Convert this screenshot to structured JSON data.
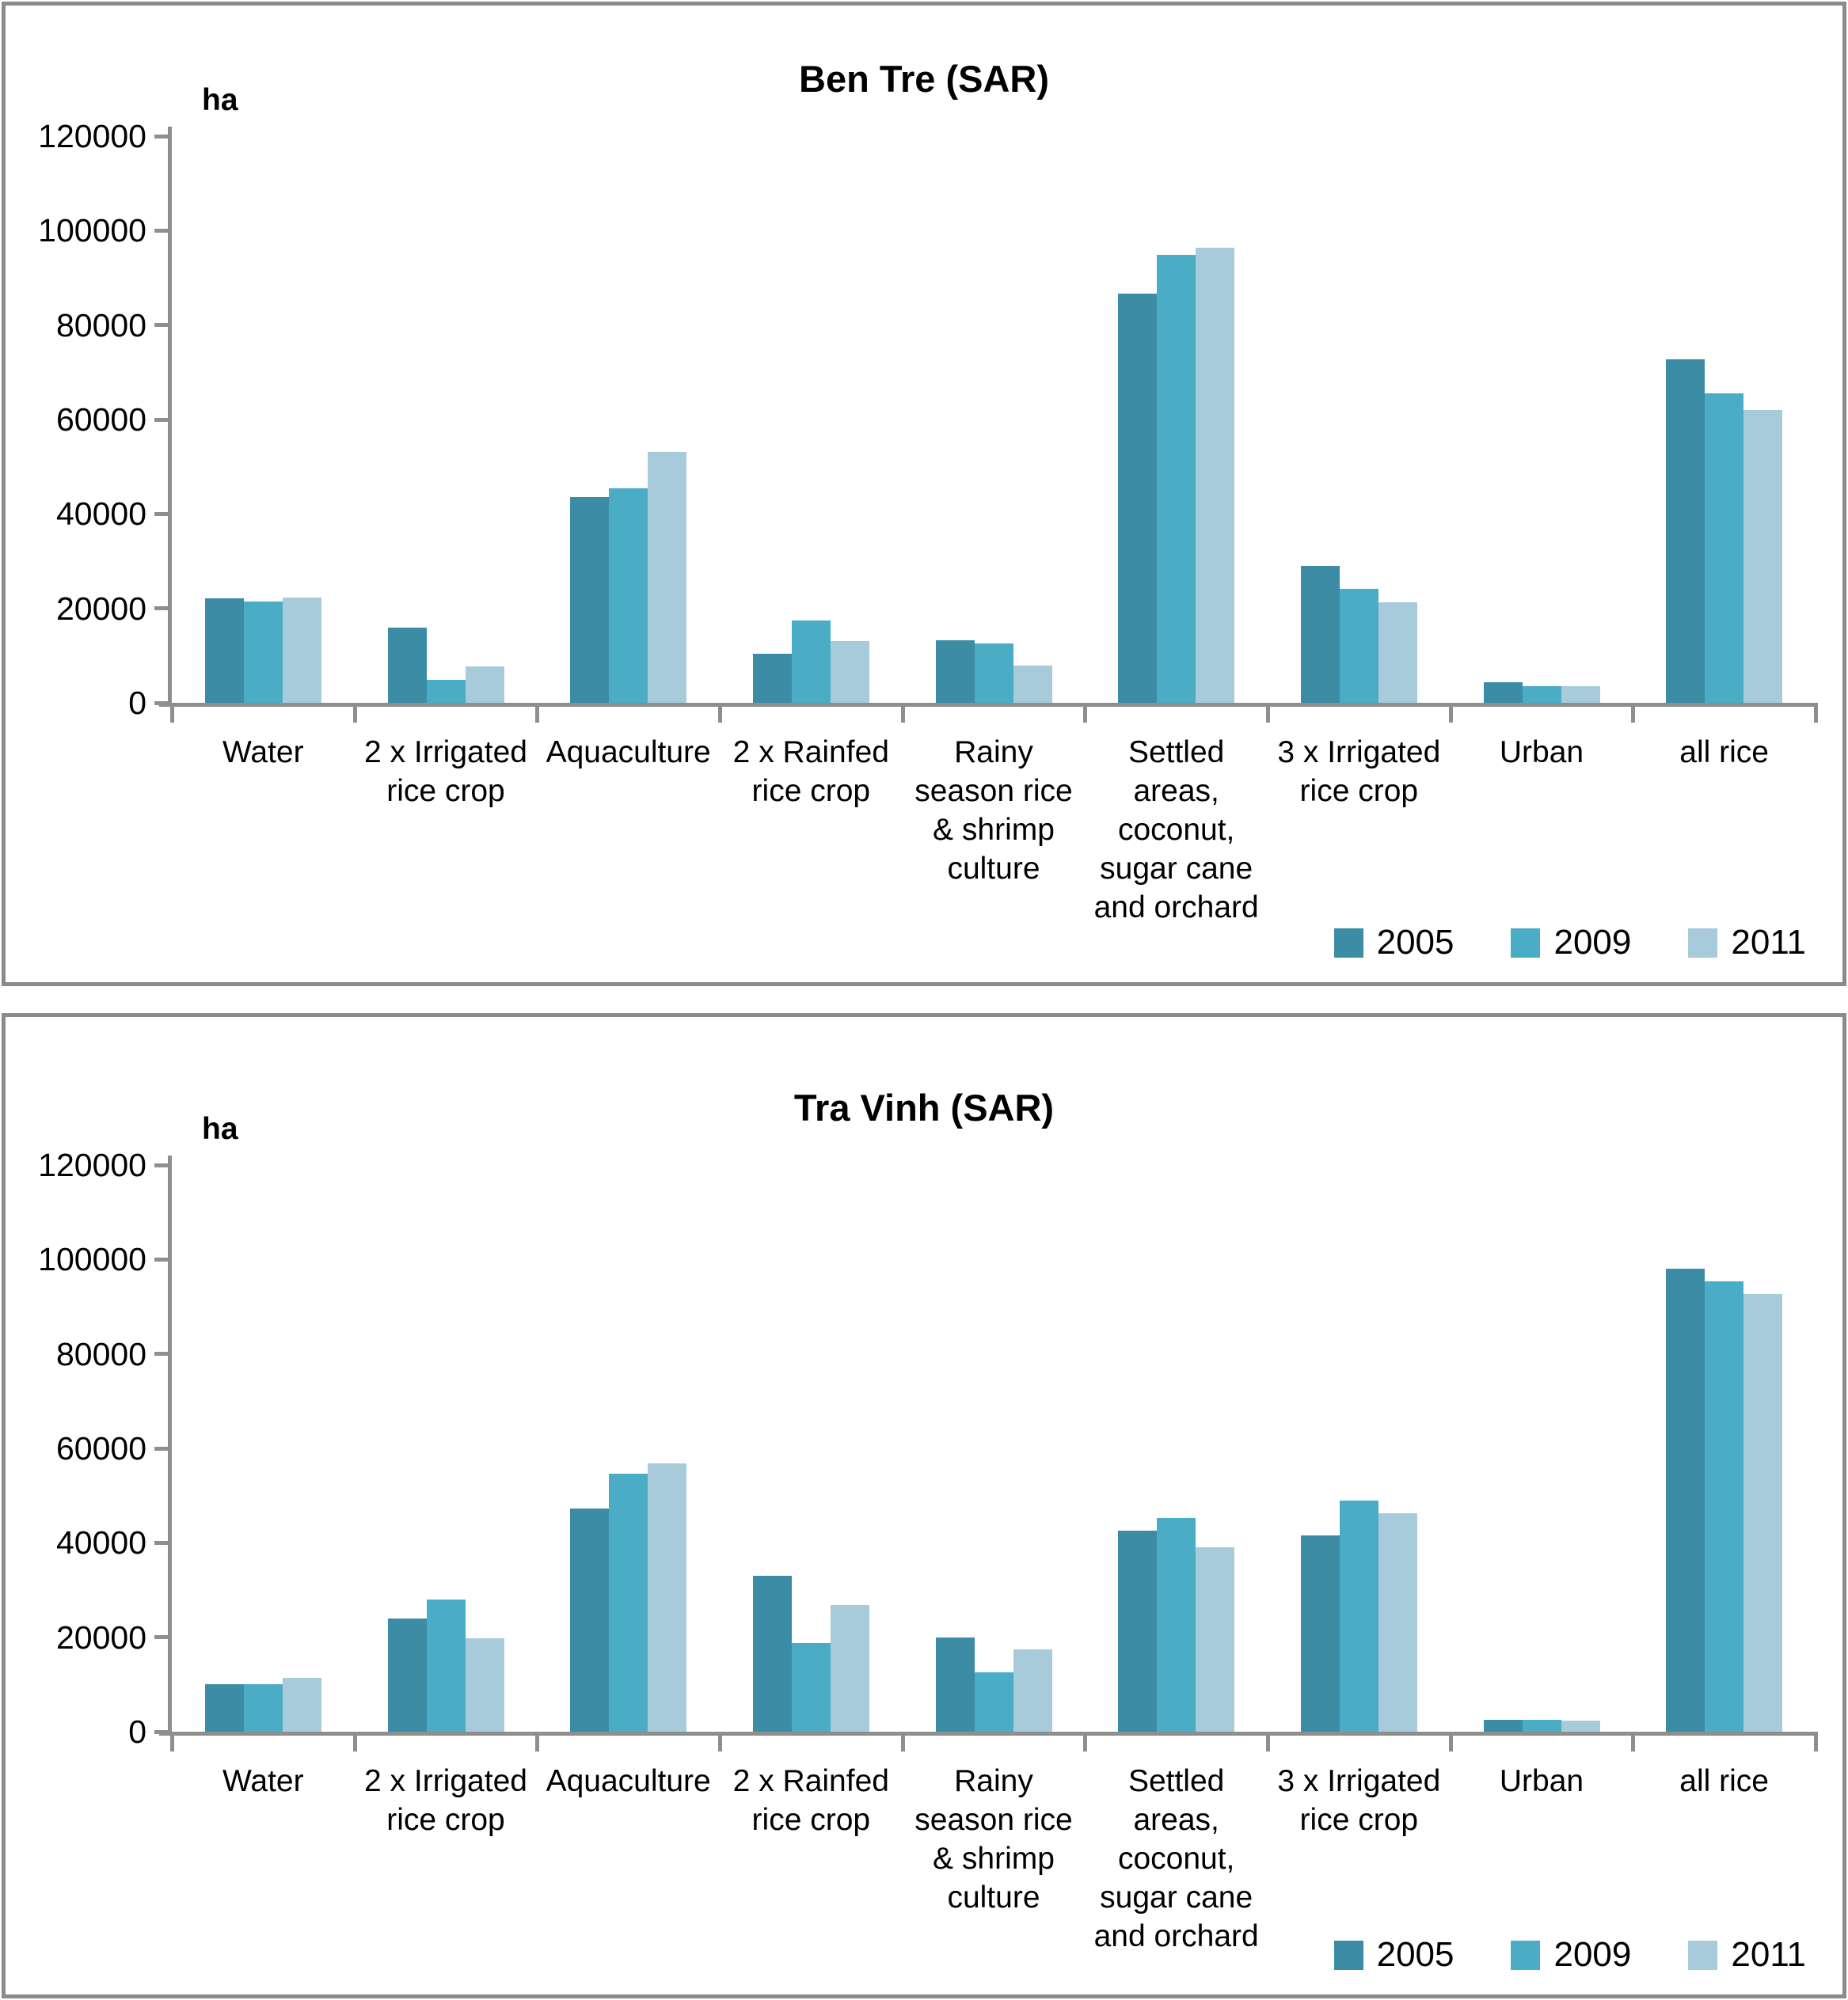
{
  "unit_label": "ha",
  "colors": {
    "series": [
      "#3B8CA4",
      "#4AACC5",
      "#A8CBDC"
    ],
    "axis": "#8E8E8E",
    "panel_border": "#8A8A8A",
    "text": "#000000"
  },
  "y_axis": {
    "min": 0,
    "max": 120000,
    "step": 20000,
    "tick_labels": [
      "120000",
      "100000",
      "80000",
      "60000",
      "40000",
      "20000",
      "0"
    ]
  },
  "category_label_lines": [
    [
      "Water"
    ],
    [
      "2 x Irrigated",
      "rice crop"
    ],
    [
      "Aquaculture"
    ],
    [
      "2 x Rainfed",
      "rice crop"
    ],
    [
      "Rainy",
      "season rice",
      "& shrimp",
      "culture"
    ],
    [
      "Settled",
      "areas,",
      "coconut,",
      "sugar cane",
      "and orchard"
    ],
    [
      "3 x Irrigated",
      "rice crop"
    ],
    [
      "Urban"
    ],
    [
      "all rice"
    ]
  ],
  "chart_data": [
    {
      "type": "bar",
      "title": "Ben Tre (SAR)",
      "ylabel": "ha",
      "xlabel": "",
      "ylim": [
        0,
        120000
      ],
      "grid": false,
      "legend_position": "bottom-right",
      "categories": [
        "Water",
        "2 x Irrigated rice crop",
        "Aquaculture",
        "2 x Rainfed rice crop",
        "Rainy season rice & shrimp culture",
        "Settled areas, coconut, sugar cane and orchard",
        "3 x Irrigated rice crop",
        "Urban",
        "all rice"
      ],
      "series": [
        {
          "name": "2005",
          "values": [
            22200,
            16000,
            43600,
            10400,
            13300,
            86700,
            29000,
            4300,
            72800
          ]
        },
        {
          "name": "2009",
          "values": [
            21500,
            4900,
            45500,
            17400,
            12600,
            94800,
            24200,
            3600,
            65600
          ]
        },
        {
          "name": "2011",
          "values": [
            22300,
            7700,
            53100,
            13100,
            7800,
            96300,
            21300,
            3600,
            62000
          ]
        }
      ]
    },
    {
      "type": "bar",
      "title": "Tra Vinh (SAR)",
      "ylabel": "ha",
      "xlabel": "",
      "ylim": [
        0,
        120000
      ],
      "grid": false,
      "legend_position": "bottom-right",
      "categories": [
        "Water",
        "2 x Irrigated rice crop",
        "Aquaculture",
        "2 x Rainfed rice crop",
        "Rainy season rice & shrimp culture",
        "Settled areas, coconut, sugar cane and orchard",
        "3 x Irrigated rice crop",
        "Urban",
        "all rice"
      ],
      "series": [
        {
          "name": "2005",
          "values": [
            10000,
            24000,
            47300,
            33000,
            20000,
            42600,
            41500,
            2500,
            98000
          ]
        },
        {
          "name": "2009",
          "values": [
            10000,
            28000,
            54700,
            18700,
            12600,
            45200,
            49000,
            2500,
            95400
          ]
        },
        {
          "name": "2011",
          "values": [
            11400,
            19700,
            56900,
            26900,
            17400,
            39100,
            46200,
            2400,
            92700
          ]
        }
      ]
    }
  ]
}
